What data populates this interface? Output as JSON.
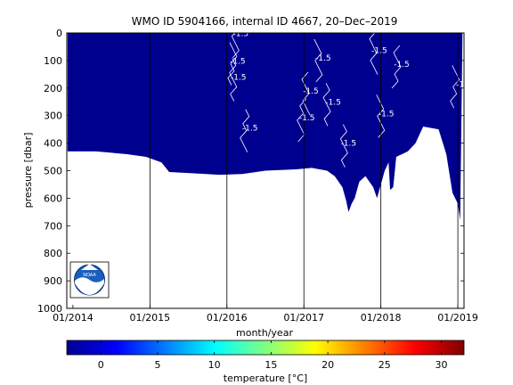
{
  "chart_data": {
    "type": "heatmap",
    "title": "WMO ID 5904166, internal ID 4667, 20–Dec–2019",
    "xlabel": "month/year",
    "ylabel": "pressure [dbar]",
    "ylim": [
      0,
      1000
    ],
    "y_reversed": true,
    "yticks": [
      0,
      100,
      200,
      300,
      400,
      500,
      600,
      700,
      800,
      900,
      1000
    ],
    "x_start": 2013.92,
    "x_end": 2019.08,
    "xticks": [
      {
        "label": "01/2014",
        "value": 2014.0
      },
      {
        "label": "01/2015",
        "value": 2015.0
      },
      {
        "label": "01/2016",
        "value": 2016.0
      },
      {
        "label": "01/2017",
        "value": 2017.0
      },
      {
        "label": "01/2018",
        "value": 2018.0
      },
      {
        "label": "01/2019",
        "value": 2019.0
      }
    ],
    "year_lines": [
      2015.0,
      2016.0,
      2017.0,
      2018.0,
      2019.0
    ],
    "fill_color": "#00008f",
    "contour_color": "#ffffff",
    "profile_depth": [
      {
        "t": 2013.93,
        "p": 430
      },
      {
        "t": 2014.3,
        "p": 430
      },
      {
        "t": 2014.7,
        "p": 440
      },
      {
        "t": 2014.95,
        "p": 450
      },
      {
        "t": 2015.15,
        "p": 470
      },
      {
        "t": 2015.25,
        "p": 505
      },
      {
        "t": 2015.6,
        "p": 510
      },
      {
        "t": 2015.9,
        "p": 515
      },
      {
        "t": 2016.2,
        "p": 512
      },
      {
        "t": 2016.5,
        "p": 500
      },
      {
        "t": 2016.9,
        "p": 495
      },
      {
        "t": 2017.1,
        "p": 490
      },
      {
        "t": 2017.3,
        "p": 500
      },
      {
        "t": 2017.4,
        "p": 520
      },
      {
        "t": 2017.5,
        "p": 560
      },
      {
        "t": 2017.55,
        "p": 610
      },
      {
        "t": 2017.58,
        "p": 650
      },
      {
        "t": 2017.62,
        "p": 620
      },
      {
        "t": 2017.66,
        "p": 600
      },
      {
        "t": 2017.72,
        "p": 540
      },
      {
        "t": 2017.8,
        "p": 520
      },
      {
        "t": 2017.9,
        "p": 560
      },
      {
        "t": 2017.95,
        "p": 600
      },
      {
        "t": 2018.05,
        "p": 500
      },
      {
        "t": 2018.1,
        "p": 470
      },
      {
        "t": 2018.12,
        "p": 570
      },
      {
        "t": 2018.16,
        "p": 560
      },
      {
        "t": 2018.2,
        "p": 450
      },
      {
        "t": 2018.35,
        "p": 430
      },
      {
        "t": 2018.45,
        "p": 400
      },
      {
        "t": 2018.55,
        "p": 340
      },
      {
        "t": 2018.75,
        "p": 350
      },
      {
        "t": 2018.85,
        "p": 440
      },
      {
        "t": 2018.93,
        "p": 580
      },
      {
        "t": 2019.0,
        "p": 620
      },
      {
        "t": 2019.03,
        "p": 680
      },
      {
        "t": 2019.06,
        "p": 0
      }
    ],
    "contour_labels": [
      {
        "text": "-1.5",
        "t": 2016.18,
        "p": 12
      },
      {
        "text": "-1.5",
        "t": 2016.14,
        "p": 112
      },
      {
        "text": "-1.5",
        "t": 2016.15,
        "p": 170
      },
      {
        "text": "-1.5",
        "t": 2016.3,
        "p": 355
      },
      {
        "text": "-1.5",
        "t": 2017.09,
        "p": 220
      },
      {
        "text": "-1.5",
        "t": 2017.04,
        "p": 317
      },
      {
        "text": "-1.5",
        "t": 2017.25,
        "p": 100
      },
      {
        "text": "-1.5",
        "t": 2017.38,
        "p": 260
      },
      {
        "text": "-1.5",
        "t": 2017.58,
        "p": 410
      },
      {
        "text": "-1.5",
        "t": 2017.98,
        "p": 73
      },
      {
        "text": "-1.5",
        "t": 2018.27,
        "p": 123
      },
      {
        "text": "-1.5",
        "t": 2018.07,
        "p": 302
      },
      {
        "text": "-1",
        "t": 2019.03,
        "p": 195
      }
    ],
    "colorbar": {
      "label": "temperature [°C]",
      "min": -3,
      "max": 32,
      "ticks": [
        0,
        5,
        10,
        15,
        20,
        25,
        30
      ]
    }
  }
}
